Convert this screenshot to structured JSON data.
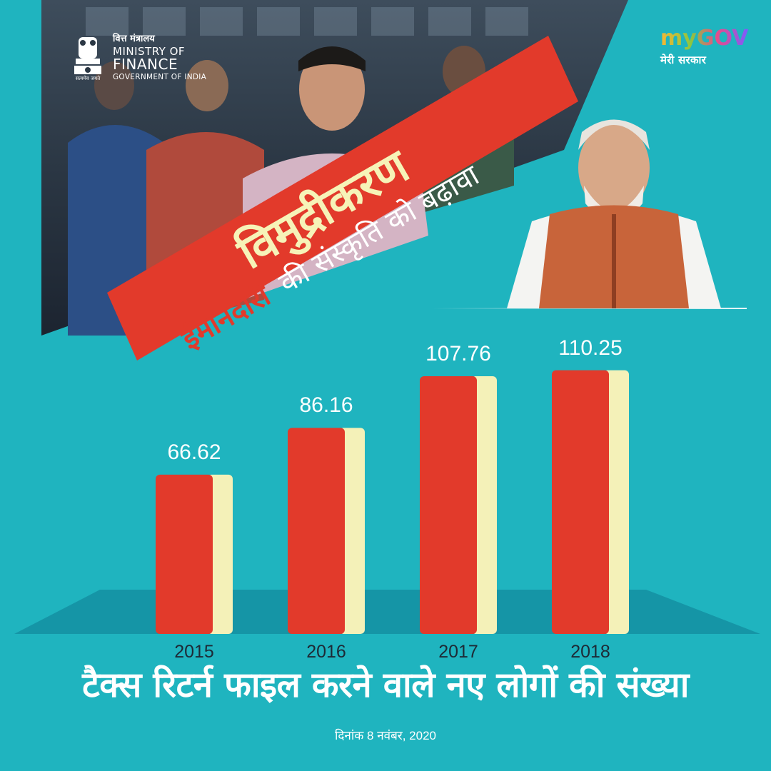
{
  "header": {
    "ministry_hindi": "वित्त मंत्रालय",
    "ministry_line1": "MINISTRY OF",
    "ministry_line2": "FINANCE",
    "ministry_line3": "GOVERNMENT OF INDIA",
    "emblem_caption": "सत्यमेव जयते",
    "mygov_word": "myGOV",
    "mygov_sub": "मेरी सरकार"
  },
  "banner": {
    "headline": "विमुद्रीकरण",
    "sub_highlight": "ईमानदारी",
    "sub_rest": "की संस्कृति को बढ़ावा"
  },
  "colors": {
    "background": "#1fb4bf",
    "bar": "#e23a2b",
    "bar_shadow": "#f4f1b8",
    "platform": "#1595a6",
    "banner_red": "#e23a2b",
    "highlight_text": "#e23a2b",
    "headline_text": "#f6f3b8"
  },
  "chart_data": {
    "type": "bar",
    "categories": [
      "2015",
      "2016",
      "2017",
      "2018"
    ],
    "values": [
      66.62,
      86.16,
      107.76,
      110.25
    ],
    "value_labels": [
      "66.62",
      "86.16",
      "107.76",
      "110.25"
    ],
    "title": "टैक्स रिटर्न फाइल करने वाले नए लोगों की संख्या",
    "xlabel": "",
    "ylabel": "",
    "ylim": [
      0,
      130
    ],
    "grid": false,
    "legend": "none"
  },
  "footer": {
    "date": "दिनांक 8 नवंबर, 2020"
  }
}
